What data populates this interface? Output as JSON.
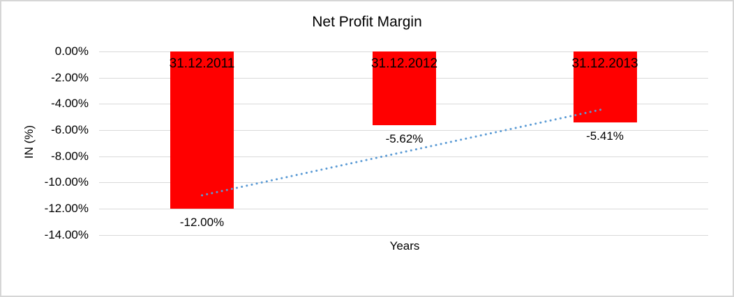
{
  "chart_data": {
    "type": "bar",
    "title": "Net Profit Margin",
    "xlabel": "Years",
    "ylabel": "IN (%)",
    "categories": [
      "31.12.2011",
      "31.12.2012",
      "31.12.2013"
    ],
    "values": [
      -12.0,
      -5.62,
      -5.41
    ],
    "value_labels": [
      "-12.00%",
      "-5.62%",
      "-5.41%"
    ],
    "ylim": [
      -14,
      0
    ],
    "ytick_values": [
      0,
      -2,
      -4,
      -6,
      -8,
      -10,
      -12,
      -14
    ],
    "ytick_labels": [
      "0.00%",
      "-2.00%",
      "-4.00%",
      "-6.00%",
      "-8.00%",
      "-10.00%",
      "-12.00%",
      "-14.00%"
    ],
    "grid": true,
    "legend": false,
    "bar_color": "#ff0000",
    "gridline_color": "#d9d9d9",
    "text_color": "#000000",
    "trendline": {
      "style": "dotted",
      "color": "#5b9bd5",
      "start_value": -10.97,
      "end_value": -4.38
    }
  }
}
